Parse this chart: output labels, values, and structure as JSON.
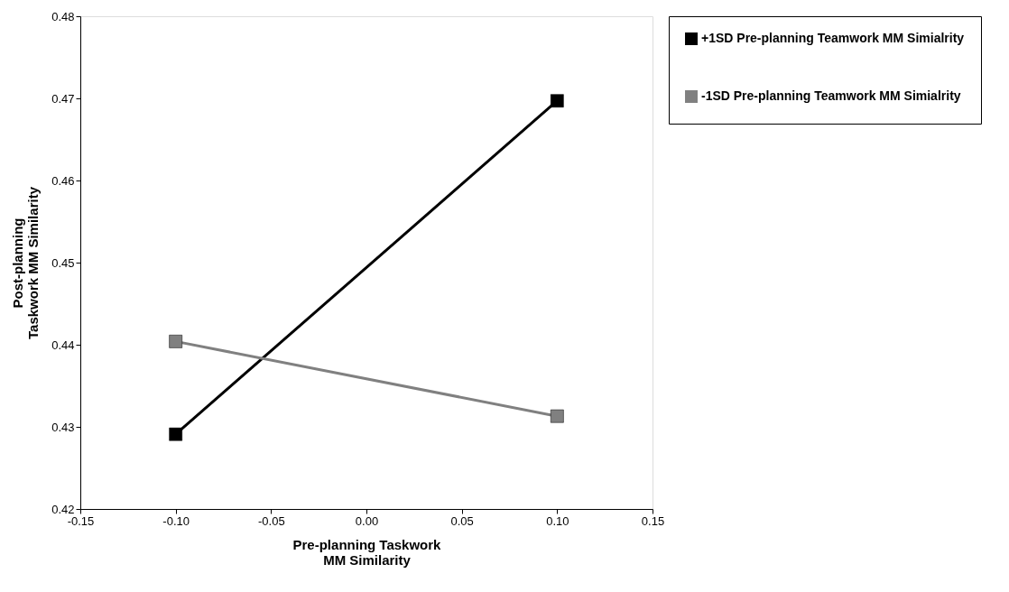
{
  "chart_data": {
    "type": "line",
    "xlabel": "Pre-planning Taskwork MM Similarity",
    "ylabel": "Post-planning Taskwork MM Similarity",
    "x": [
      -0.1,
      0.1
    ],
    "series": [
      {
        "name": "+1SD Pre-planning Teamwork MM Simialrity",
        "color": "#000000",
        "values": [
          0.4291,
          0.4697
        ]
      },
      {
        "name": "-1SD Pre-planning Teamwork MM Simialrity",
        "color": "#808080",
        "values": [
          0.4404,
          0.4313
        ]
      }
    ],
    "xlim": [
      -0.15,
      0.15
    ],
    "xticks": [
      {
        "value": -0.15,
        "label": "-0.15"
      },
      {
        "value": -0.1,
        "label": "-0.10"
      },
      {
        "value": -0.05,
        "label": "-0.05"
      },
      {
        "value": 0,
        "label": "0.00"
      },
      {
        "value": 0.05,
        "label": "0.05"
      },
      {
        "value": 0.1,
        "label": "0.10"
      },
      {
        "value": 0.15,
        "label": "0.15"
      }
    ],
    "ylim": [
      0.42,
      0.48
    ],
    "yticks": [
      0.42,
      0.43,
      0.44,
      0.45,
      0.46,
      0.47,
      0.48
    ],
    "grid": false,
    "legend": "right",
    "marker": "square",
    "line_style": "solid"
  }
}
